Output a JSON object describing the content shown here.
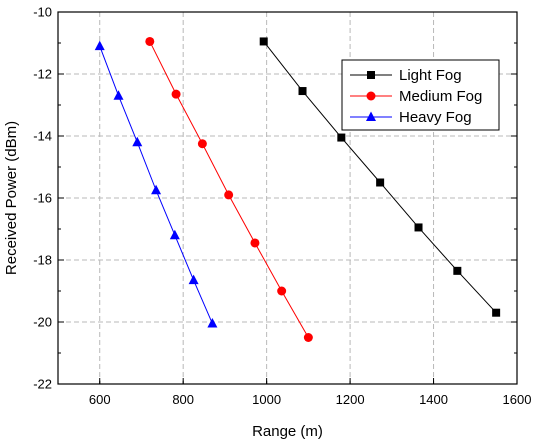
{
  "chart_data": {
    "type": "line",
    "title": "",
    "xlabel": "Range (m)",
    "ylabel": "Received Power (dBm)",
    "xlim": [
      500,
      1600
    ],
    "ylim": [
      -22,
      -10
    ],
    "xticks": [
      600,
      800,
      1000,
      1200,
      1400,
      1600
    ],
    "yticks": [
      -10,
      -12,
      -14,
      -16,
      -18,
      -20,
      -22
    ],
    "grid": true,
    "legend_position": "top-right",
    "series": [
      {
        "name": "Light Fog",
        "color": "#000000",
        "marker": "square",
        "x": [
          993,
          1086,
          1179,
          1272,
          1364,
          1457,
          1550
        ],
        "y": [
          -10.95,
          -12.55,
          -14.05,
          -15.5,
          -16.95,
          -18.35,
          -19.7
        ]
      },
      {
        "name": "Medium Fog",
        "color": "#ff0000",
        "marker": "circle",
        "x": [
          720,
          783,
          846,
          909,
          972,
          1036,
          1100
        ],
        "y": [
          -10.95,
          -12.65,
          -14.25,
          -15.9,
          -17.45,
          -19.0,
          -20.5
        ]
      },
      {
        "name": "Heavy Fog",
        "color": "#0000ff",
        "marker": "triangle",
        "x": [
          600,
          645,
          690,
          735,
          780,
          825,
          870
        ],
        "y": [
          -11.1,
          -12.7,
          -14.2,
          -15.75,
          -17.2,
          -18.65,
          -20.05
        ]
      }
    ]
  }
}
